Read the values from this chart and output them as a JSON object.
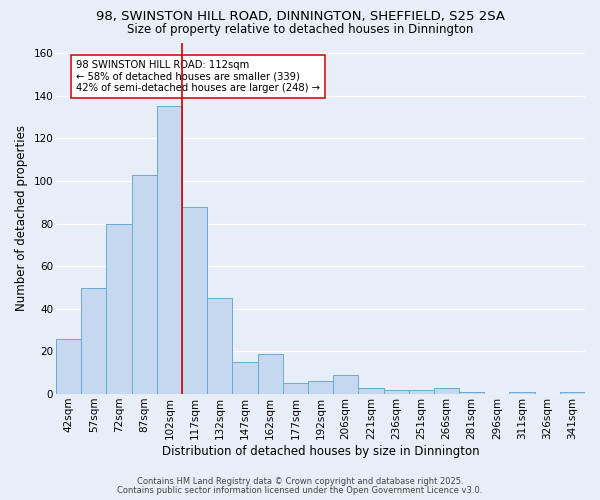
{
  "title_line1": "98, SWINSTON HILL ROAD, DINNINGTON, SHEFFIELD, S25 2SA",
  "title_line2": "Size of property relative to detached houses in Dinnington",
  "xlabel": "Distribution of detached houses by size in Dinnington",
  "ylabel": "Number of detached properties",
  "bar_labels": [
    "42sqm",
    "57sqm",
    "72sqm",
    "87sqm",
    "102sqm",
    "117sqm",
    "132sqm",
    "147sqm",
    "162sqm",
    "177sqm",
    "192sqm",
    "206sqm",
    "221sqm",
    "236sqm",
    "251sqm",
    "266sqm",
    "281sqm",
    "296sqm",
    "311sqm",
    "326sqm",
    "341sqm"
  ],
  "bar_values": [
    26,
    50,
    80,
    103,
    135,
    88,
    45,
    15,
    19,
    5,
    6,
    9,
    3,
    2,
    2,
    3,
    1,
    0,
    1,
    0,
    1
  ],
  "bar_color": "#c5d8f0",
  "bar_edge_color": "#6aaad4",
  "vline_color": "#cc0000",
  "annotation_text": "98 SWINSTON HILL ROAD: 112sqm\n← 58% of detached houses are smaller (339)\n42% of semi-detached houses are larger (248) →",
  "annotation_box_color": "#ffffff",
  "annotation_box_edge": "#cc0000",
  "footnote1": "Contains HM Land Registry data © Crown copyright and database right 2025.",
  "footnote2": "Contains public sector information licensed under the Open Government Licence v3.0.",
  "background_color": "#e8eef8",
  "grid_color": "#ffffff",
  "ylim": [
    0,
    165
  ],
  "yticks": [
    0,
    20,
    40,
    60,
    80,
    100,
    120,
    140,
    160
  ],
  "title_fontsize": 9.5,
  "subtitle_fontsize": 8.5,
  "xlabel_fontsize": 8.5,
  "ylabel_fontsize": 8.5,
  "tick_fontsize": 7.5,
  "annot_fontsize": 7.2,
  "footnote_fontsize": 6.0
}
